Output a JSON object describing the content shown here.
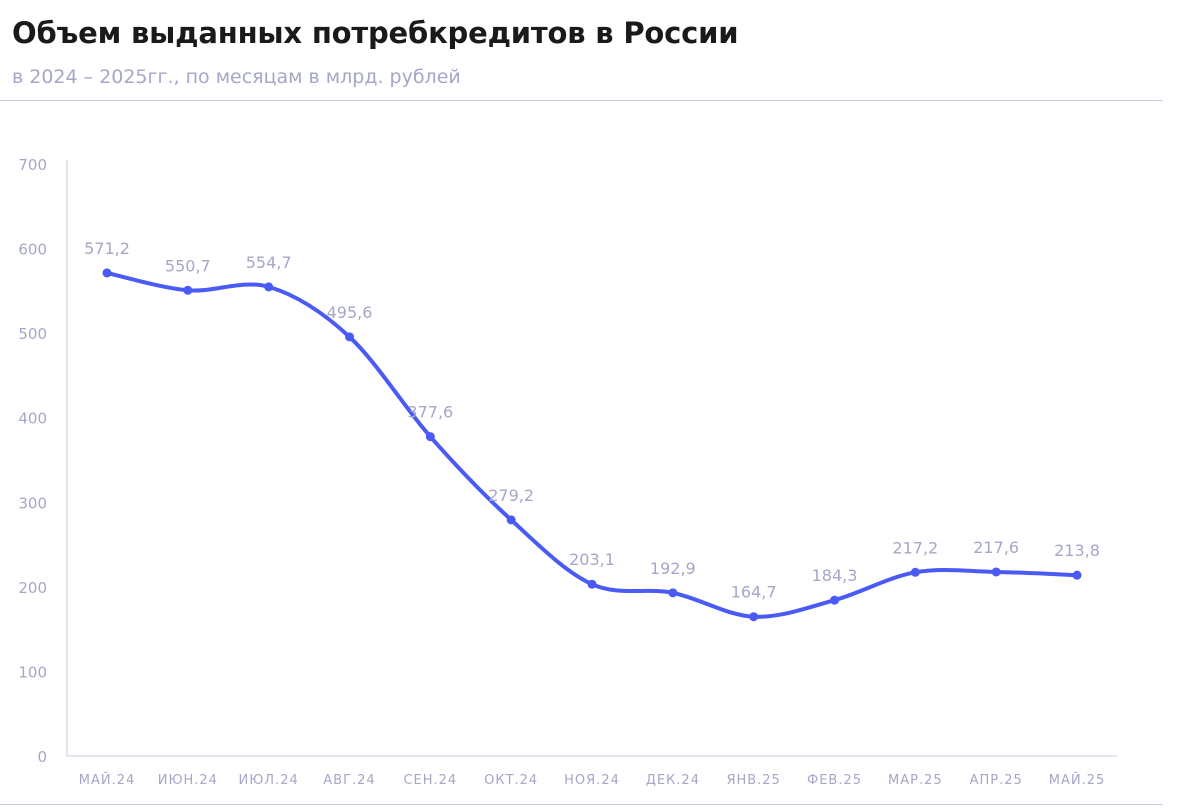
{
  "header": {
    "title": "Объем выданных потребкредитов в России",
    "subtitle": "в 2024 – 2025гг., по месяцам в млрд. рублей"
  },
  "chart_data": {
    "type": "line",
    "title": "Объем выданных потребкредитов в России",
    "subtitle": "в 2024 – 2025гг., по месяцам в млрд. рублей",
    "xlabel": "",
    "ylabel": "",
    "categories": [
      "МАЙ.24",
      "ИЮН.24",
      "ИЮЛ.24",
      "АВГ.24",
      "СЕН.24",
      "ОКТ.24",
      "НОЯ.24",
      "ДЕК.24",
      "ЯНВ.25",
      "ФЕВ.25",
      "МАР.25",
      "АПР.25",
      "МАЙ.25"
    ],
    "values": [
      571.2,
      550.7,
      554.7,
      495.6,
      377.6,
      279.2,
      203.1,
      192.9,
      164.7,
      184.3,
      217.2,
      217.6,
      213.8
    ],
    "value_labels": [
      "571,2",
      "550,7",
      "554,7",
      "495,6",
      "377,6",
      "279,2",
      "203,1",
      "192,9",
      "164,7",
      "184,3",
      "217,2",
      "217,6",
      "213,8"
    ],
    "ylim": [
      0,
      700
    ],
    "yticks": [
      0,
      100,
      200,
      300,
      400,
      500,
      600,
      700
    ],
    "grid": false,
    "smooth": true,
    "line_color": "#4a5af5",
    "label_color": "#a4a7c8",
    "axis_color": "#c9cbe0"
  }
}
